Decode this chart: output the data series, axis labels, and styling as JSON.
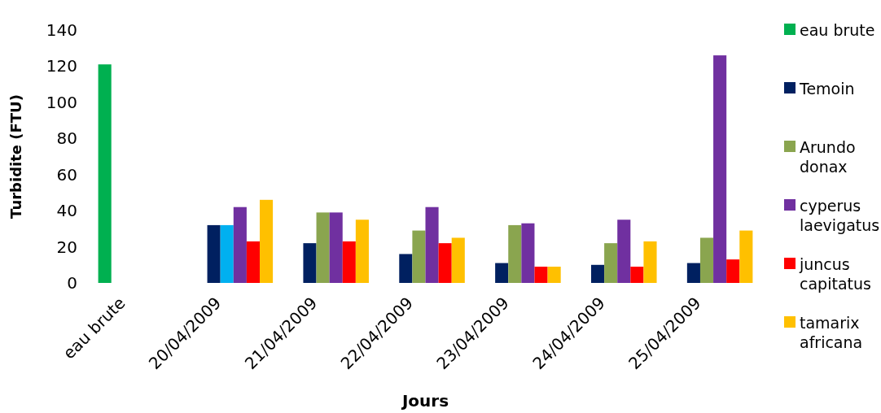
{
  "chart_data": {
    "type": "bar",
    "xlabel": "Jours",
    "ylabel": "Turbidite (FTU)",
    "categories": [
      "eau brute",
      "20/04/2009",
      "21/04/2009",
      "22/04/2009",
      "23/04/2009",
      "24/04/2009",
      "25/04/2009"
    ],
    "series": [
      {
        "name": "eau brute",
        "color": "#00b050",
        "values": [
          121,
          null,
          null,
          null,
          null,
          null,
          null
        ]
      },
      {
        "name": "Temoin",
        "color": "#002060",
        "values": [
          null,
          32,
          22,
          16,
          11,
          10,
          11
        ]
      },
      {
        "name": "Arundo donax",
        "color": "#8aa54f",
        "colors": [
          null,
          "#00b0f0",
          "#8aa54f",
          "#8aa54f",
          "#8aa54f",
          "#8aa54f",
          "#8aa54f"
        ],
        "values": [
          null,
          32,
          39,
          29,
          32,
          22,
          25
        ]
      },
      {
        "name": "cyperus laevigatus",
        "color": "#7030a0",
        "values": [
          null,
          42,
          39,
          42,
          33,
          35,
          126
        ]
      },
      {
        "name": "juncus capitatus",
        "color": "#ff0000",
        "values": [
          null,
          23,
          23,
          22,
          9,
          9,
          13
        ]
      },
      {
        "name": "tamarix africana",
        "color": "#ffc000",
        "values": [
          null,
          46,
          35,
          25,
          9,
          23,
          29
        ]
      }
    ],
    "ylim": [
      0,
      140
    ],
    "yticks": [
      0,
      20,
      40,
      60,
      80,
      100,
      120,
      140
    ],
    "grid": false,
    "legend": "right"
  }
}
